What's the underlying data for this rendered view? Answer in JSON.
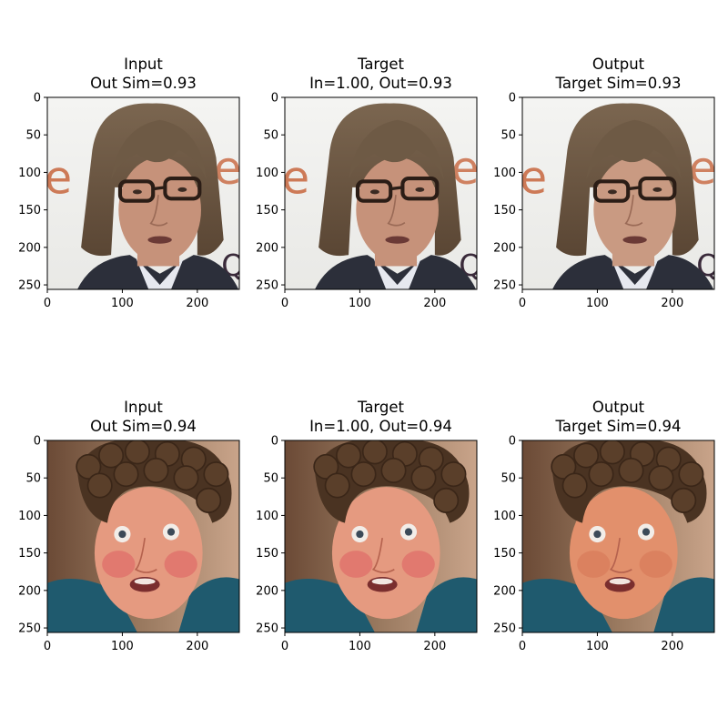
{
  "chart_data": {
    "type": "image-grid",
    "rows": 2,
    "cols": 3,
    "xlim": [
      0,
      256
    ],
    "ylim": [
      256,
      0
    ],
    "xticks": [
      0,
      100,
      200
    ],
    "yticks": [
      0,
      50,
      100,
      150,
      200,
      250
    ],
    "panels": [
      {
        "row": 0,
        "col": 0,
        "title_line1": "Input",
        "title_line2": "Out Sim=0.93",
        "subject": "man-with-glasses",
        "variant": "input"
      },
      {
        "row": 0,
        "col": 1,
        "title_line1": "Target",
        "title_line2": "In=1.00, Out=0.93",
        "subject": "man-with-glasses",
        "variant": "target"
      },
      {
        "row": 0,
        "col": 2,
        "title_line1": "Output",
        "title_line2": "Target Sim=0.93",
        "subject": "man-with-glasses",
        "variant": "output"
      },
      {
        "row": 1,
        "col": 0,
        "title_line1": "Input",
        "title_line2": "Out Sim=0.94",
        "subject": "man-with-curly-wig",
        "variant": "input"
      },
      {
        "row": 1,
        "col": 1,
        "title_line1": "Target",
        "title_line2": "In=1.00, Out=0.94",
        "subject": "man-with-curly-wig",
        "variant": "target"
      },
      {
        "row": 1,
        "col": 2,
        "title_line1": "Output",
        "title_line2": "Target Sim=0.94",
        "subject": "man-with-curly-wig",
        "variant": "output"
      }
    ]
  }
}
